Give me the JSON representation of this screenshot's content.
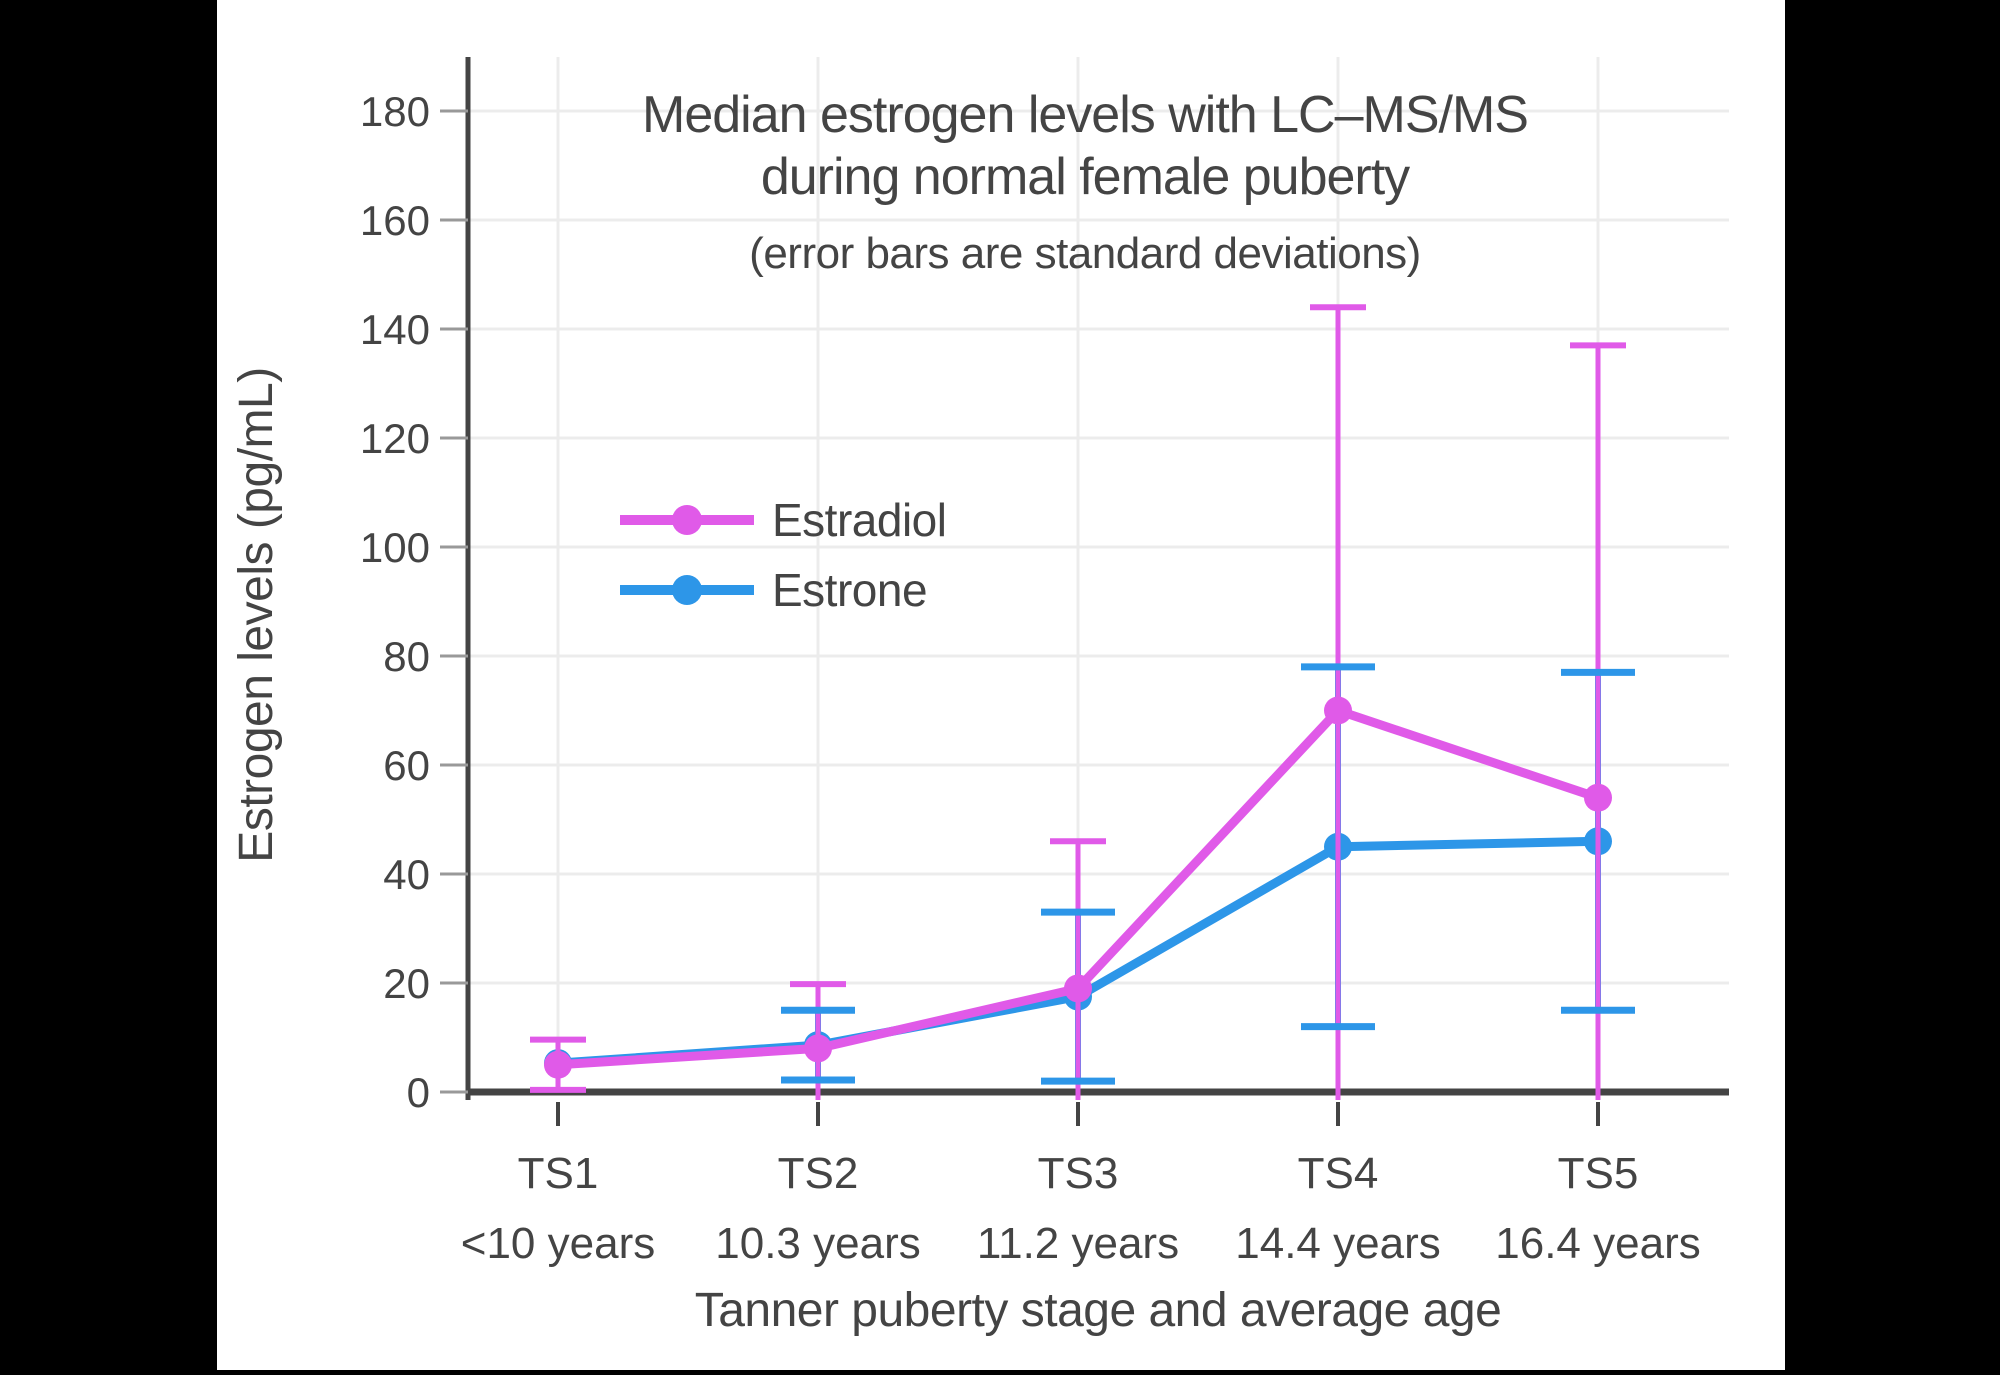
{
  "window": {
    "background_color": "#000000",
    "panel_color": "#ffffff"
  },
  "colors": {
    "grid": "#ECECEC",
    "axis_line": "#444444",
    "tick_mark": "#999999",
    "x_tick_mark": "#444444",
    "text": "#444444"
  },
  "chart_data": {
    "type": "line",
    "title": "Median estrogen levels with LC–MS/MS during normal female puberty",
    "title_lines": [
      "Median estrogen levels with LC–MS/MS",
      "during normal female puberty"
    ],
    "subtitle": "(error bars are standard deviations)",
    "xlabel": "Tanner puberty stage and average age",
    "ylabel": "Estrogen levels (pg/mL)",
    "categories": [
      "TS1",
      "TS2",
      "TS3",
      "TS4",
      "TS5"
    ],
    "category_ages": [
      "<10 years",
      "10.3 years",
      "11.2 years",
      "14.4 years",
      "16.4 years"
    ],
    "ylim": [
      0,
      190
    ],
    "yticks": [
      0,
      20,
      40,
      60,
      80,
      100,
      120,
      140,
      160,
      180
    ],
    "grid": true,
    "legend_position": "inside-upper-left",
    "error_bar_meaning": "standard deviations",
    "series": [
      {
        "name": "Estradiol",
        "color": "#E05AE8",
        "values": [
          5,
          8,
          19,
          70,
          54
        ],
        "sd": [
          4.6,
          11.8,
          27,
          74,
          83
        ],
        "error_top": [
          9.6,
          19.8,
          46,
          144,
          137
        ],
        "error_bottom_visible": [
          0.4,
          null,
          null,
          null,
          null
        ]
      },
      {
        "name": "Estrone",
        "color": "#2D96E8",
        "values": [
          5.3,
          8.6,
          17.5,
          45,
          46
        ],
        "sd": [
          null,
          6.4,
          15.5,
          33,
          31
        ],
        "error_top": [
          null,
          15,
          33,
          78,
          77
        ],
        "error_bottom_visible": [
          null,
          2.2,
          2,
          12,
          15
        ]
      }
    ]
  }
}
